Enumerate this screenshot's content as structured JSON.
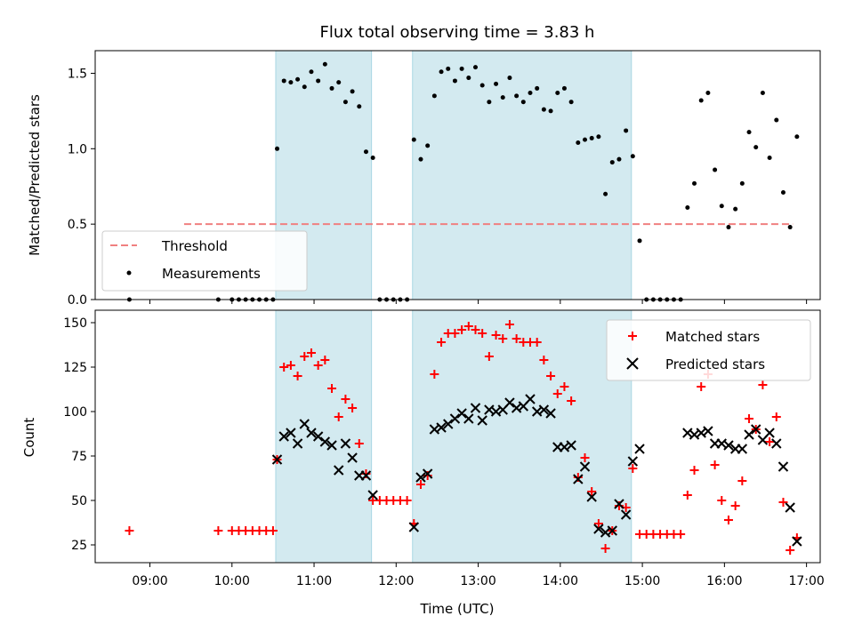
{
  "chart_data": [
    {
      "type": "scatter",
      "title": "Flux total observing time = 3.83 h",
      "ylabel": "Matched/Predicted stars",
      "ylim": [
        0,
        1.65
      ],
      "y_ticks": [
        0,
        0.5,
        1.0,
        1.5
      ],
      "y_tick_labels": [
        "0.0",
        "0.5",
        "1.0",
        "1.5"
      ],
      "shaded_intervals": [
        [
          "10:32",
          "11:42"
        ],
        [
          "12:12",
          "14:52"
        ]
      ],
      "shade_color": "#d3eaf0",
      "threshold": {
        "name": "Threshold",
        "value": 0.5,
        "x_range": [
          "09:25",
          "16:50"
        ],
        "color": "#f08080"
      },
      "series": [
        {
          "name": "Measurements",
          "color": "#000000",
          "marker": "dot",
          "points": [
            [
              "08:45",
              0
            ],
            [
              "09:50",
              0
            ],
            [
              "10:00",
              0
            ],
            [
              "10:05",
              0
            ],
            [
              "10:10",
              0
            ],
            [
              "10:15",
              0
            ],
            [
              "10:20",
              0
            ],
            [
              "10:25",
              0
            ],
            [
              "10:30",
              0
            ],
            [
              "10:33",
              1.0
            ],
            [
              "10:38",
              1.45
            ],
            [
              "10:43",
              1.44
            ],
            [
              "10:48",
              1.46
            ],
            [
              "10:53",
              1.41
            ],
            [
              "10:58",
              1.51
            ],
            [
              "11:03",
              1.45
            ],
            [
              "11:08",
              1.56
            ],
            [
              "11:13",
              1.4
            ],
            [
              "11:18",
              1.44
            ],
            [
              "11:23",
              1.31
            ],
            [
              "11:28",
              1.38
            ],
            [
              "11:33",
              1.28
            ],
            [
              "11:38",
              0.98
            ],
            [
              "11:43",
              0.94
            ],
            [
              "11:48",
              0
            ],
            [
              "11:53",
              0
            ],
            [
              "11:58",
              0
            ],
            [
              "12:03",
              0
            ],
            [
              "12:08",
              0
            ],
            [
              "12:13",
              1.06
            ],
            [
              "12:18",
              0.93
            ],
            [
              "12:23",
              1.02
            ],
            [
              "12:28",
              1.35
            ],
            [
              "12:33",
              1.51
            ],
            [
              "12:38",
              1.53
            ],
            [
              "12:43",
              1.45
            ],
            [
              "12:48",
              1.53
            ],
            [
              "12:53",
              1.47
            ],
            [
              "12:58",
              1.54
            ],
            [
              "13:03",
              1.42
            ],
            [
              "13:08",
              1.31
            ],
            [
              "13:13",
              1.43
            ],
            [
              "13:18",
              1.34
            ],
            [
              "13:23",
              1.47
            ],
            [
              "13:28",
              1.35
            ],
            [
              "13:33",
              1.31
            ],
            [
              "13:38",
              1.37
            ],
            [
              "13:43",
              1.4
            ],
            [
              "13:48",
              1.26
            ],
            [
              "13:53",
              1.25
            ],
            [
              "13:58",
              1.37
            ],
            [
              "14:03",
              1.4
            ],
            [
              "14:08",
              1.31
            ],
            [
              "14:13",
              1.04
            ],
            [
              "14:18",
              1.06
            ],
            [
              "14:23",
              1.07
            ],
            [
              "14:28",
              1.08
            ],
            [
              "14:33",
              0.7
            ],
            [
              "14:38",
              0.91
            ],
            [
              "14:43",
              0.93
            ],
            [
              "14:48",
              1.12
            ],
            [
              "14:53",
              0.95
            ],
            [
              "14:58",
              0.39
            ],
            [
              "15:03",
              0
            ],
            [
              "15:08",
              0
            ],
            [
              "15:13",
              0
            ],
            [
              "15:18",
              0
            ],
            [
              "15:23",
              0
            ],
            [
              "15:28",
              0
            ],
            [
              "15:33",
              0.61
            ],
            [
              "15:38",
              0.77
            ],
            [
              "15:43",
              1.32
            ],
            [
              "15:48",
              1.37
            ],
            [
              "15:53",
              0.86
            ],
            [
              "15:58",
              0.62
            ],
            [
              "16:03",
              0.48
            ],
            [
              "16:08",
              0.6
            ],
            [
              "16:13",
              0.77
            ],
            [
              "16:18",
              1.11
            ],
            [
              "16:23",
              1.01
            ],
            [
              "16:28",
              1.37
            ],
            [
              "16:33",
              0.94
            ],
            [
              "16:38",
              1.19
            ],
            [
              "16:43",
              0.71
            ],
            [
              "16:48",
              0.48
            ],
            [
              "16:53",
              1.08
            ]
          ]
        }
      ],
      "legend_position": "lower-left"
    },
    {
      "type": "scatter",
      "xlabel": "Time (UTC)",
      "ylabel": "Count",
      "xlim": [
        "08:20",
        "17:10"
      ],
      "ylim": [
        15,
        157
      ],
      "x_ticks": [
        "09:00",
        "10:00",
        "11:00",
        "12:00",
        "13:00",
        "14:00",
        "15:00",
        "16:00",
        "17:00"
      ],
      "y_ticks": [
        25,
        50,
        75,
        100,
        125,
        150
      ],
      "shaded_intervals": [
        [
          "10:32",
          "11:42"
        ],
        [
          "12:12",
          "14:52"
        ]
      ],
      "shade_color": "#d3eaf0",
      "series": [
        {
          "name": "Matched stars",
          "color": "#ff0000",
          "marker": "plus",
          "points": [
            [
              "08:45",
              33
            ],
            [
              "09:50",
              33
            ],
            [
              "10:00",
              33
            ],
            [
              "10:05",
              33
            ],
            [
              "10:10",
              33
            ],
            [
              "10:15",
              33
            ],
            [
              "10:20",
              33
            ],
            [
              "10:25",
              33
            ],
            [
              "10:30",
              33
            ],
            [
              "10:33",
              73
            ],
            [
              "10:38",
              125
            ],
            [
              "10:43",
              126
            ],
            [
              "10:48",
              120
            ],
            [
              "10:53",
              131
            ],
            [
              "10:58",
              133
            ],
            [
              "11:03",
              126
            ],
            [
              "11:08",
              129
            ],
            [
              "11:13",
              113
            ],
            [
              "11:18",
              97
            ],
            [
              "11:23",
              107
            ],
            [
              "11:28",
              102
            ],
            [
              "11:33",
              82
            ],
            [
              "11:38",
              65
            ],
            [
              "11:43",
              50
            ],
            [
              "11:48",
              50
            ],
            [
              "11:53",
              50
            ],
            [
              "11:58",
              50
            ],
            [
              "12:03",
              50
            ],
            [
              "12:08",
              50
            ],
            [
              "12:13",
              37
            ],
            [
              "12:18",
              59
            ],
            [
              "12:23",
              64
            ],
            [
              "12:28",
              121
            ],
            [
              "12:33",
              139
            ],
            [
              "12:38",
              144
            ],
            [
              "12:43",
              144
            ],
            [
              "12:48",
              146
            ],
            [
              "12:53",
              148
            ],
            [
              "12:58",
              146
            ],
            [
              "13:03",
              144
            ],
            [
              "13:08",
              131
            ],
            [
              "13:13",
              143
            ],
            [
              "13:18",
              141
            ],
            [
              "13:23",
              149
            ],
            [
              "13:28",
              141
            ],
            [
              "13:33",
              139
            ],
            [
              "13:38",
              139
            ],
            [
              "13:43",
              139
            ],
            [
              "13:48",
              129
            ],
            [
              "13:53",
              120
            ],
            [
              "13:58",
              110
            ],
            [
              "14:03",
              114
            ],
            [
              "14:08",
              106
            ],
            [
              "14:13",
              63
            ],
            [
              "14:18",
              74
            ],
            [
              "14:23",
              55
            ],
            [
              "14:28",
              37
            ],
            [
              "14:33",
              23
            ],
            [
              "14:38",
              33
            ],
            [
              "14:43",
              47
            ],
            [
              "14:48",
              46
            ],
            [
              "14:53",
              68
            ],
            [
              "14:58",
              31
            ],
            [
              "15:03",
              31
            ],
            [
              "15:08",
              31
            ],
            [
              "15:13",
              31
            ],
            [
              "15:18",
              31
            ],
            [
              "15:23",
              31
            ],
            [
              "15:28",
              31
            ],
            [
              "15:33",
              53
            ],
            [
              "15:38",
              67
            ],
            [
              "15:43",
              114
            ],
            [
              "15:48",
              121
            ],
            [
              "15:53",
              70
            ],
            [
              "15:58",
              50
            ],
            [
              "16:03",
              39
            ],
            [
              "16:08",
              47
            ],
            [
              "16:13",
              61
            ],
            [
              "16:18",
              96
            ],
            [
              "16:23",
              90
            ],
            [
              "16:28",
              115
            ],
            [
              "16:33",
              83
            ],
            [
              "16:38",
              97
            ],
            [
              "16:43",
              49
            ],
            [
              "16:48",
              22
            ],
            [
              "16:53",
              29
            ]
          ]
        },
        {
          "name": "Predicted stars",
          "color": "#000000",
          "marker": "x",
          "points": [
            [
              "10:33",
              73
            ],
            [
              "10:38",
              86
            ],
            [
              "10:43",
              88
            ],
            [
              "10:48",
              82
            ],
            [
              "10:53",
              93
            ],
            [
              "10:58",
              88
            ],
            [
              "11:03",
              86
            ],
            [
              "11:08",
              83
            ],
            [
              "11:13",
              81
            ],
            [
              "11:18",
              67
            ],
            [
              "11:23",
              82
            ],
            [
              "11:28",
              74
            ],
            [
              "11:33",
              64
            ],
            [
              "11:38",
              64
            ],
            [
              "11:43",
              53
            ],
            [
              "12:13",
              35
            ],
            [
              "12:18",
              63
            ],
            [
              "12:23",
              65
            ],
            [
              "12:28",
              90
            ],
            [
              "12:33",
              91
            ],
            [
              "12:38",
              93
            ],
            [
              "12:43",
              96
            ],
            [
              "12:48",
              99
            ],
            [
              "12:53",
              96
            ],
            [
              "12:58",
              102
            ],
            [
              "13:03",
              95
            ],
            [
              "13:08",
              101
            ],
            [
              "13:13",
              100
            ],
            [
              "13:18",
              101
            ],
            [
              "13:23",
              105
            ],
            [
              "13:28",
              102
            ],
            [
              "13:33",
              103
            ],
            [
              "13:38",
              107
            ],
            [
              "13:43",
              100
            ],
            [
              "13:48",
              101
            ],
            [
              "13:53",
              99
            ],
            [
              "13:58",
              80
            ],
            [
              "14:03",
              80
            ],
            [
              "14:08",
              81
            ],
            [
              "14:13",
              62
            ],
            [
              "14:18",
              69
            ],
            [
              "14:23",
              52
            ],
            [
              "14:28",
              34
            ],
            [
              "14:33",
              32
            ],
            [
              "14:38",
              33
            ],
            [
              "14:43",
              48
            ],
            [
              "14:48",
              42
            ],
            [
              "14:53",
              72
            ],
            [
              "14:58",
              79
            ],
            [
              "15:33",
              88
            ],
            [
              "15:38",
              87
            ],
            [
              "15:43",
              88
            ],
            [
              "15:48",
              89
            ],
            [
              "15:53",
              82
            ],
            [
              "15:58",
              82
            ],
            [
              "16:03",
              81
            ],
            [
              "16:08",
              79
            ],
            [
              "16:13",
              79
            ],
            [
              "16:18",
              87
            ],
            [
              "16:23",
              90
            ],
            [
              "16:28",
              84
            ],
            [
              "16:33",
              88
            ],
            [
              "16:38",
              82
            ],
            [
              "16:43",
              69
            ],
            [
              "16:48",
              46
            ],
            [
              "16:53",
              27
            ]
          ]
        }
      ],
      "legend_position": "upper-right"
    }
  ]
}
